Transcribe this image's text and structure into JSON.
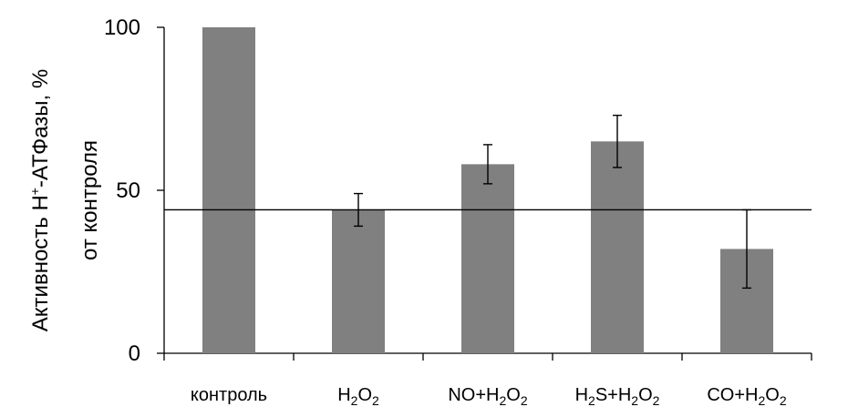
{
  "chart_data": {
    "type": "bar",
    "ylabel_line1": "Активность Н⁺-АТФазы, %",
    "ylabel_line2": "от контроля",
    "ylim": [
      0,
      100
    ],
    "yticks": [
      0,
      50,
      100
    ],
    "categories": [
      {
        "text": "контроль",
        "parts": [
          {
            "t": "контроль"
          }
        ]
      },
      {
        "text": "H₂O₂",
        "parts": [
          {
            "t": "H"
          },
          {
            "t": "2",
            "sub": true
          },
          {
            "t": "O"
          },
          {
            "t": "2",
            "sub": true
          }
        ]
      },
      {
        "text": "NO+H₂O₂",
        "parts": [
          {
            "t": "NO+H"
          },
          {
            "t": "2",
            "sub": true
          },
          {
            "t": "O"
          },
          {
            "t": "2",
            "sub": true
          }
        ]
      },
      {
        "text": "H₂S+H₂O₂",
        "parts": [
          {
            "t": "H"
          },
          {
            "t": "2",
            "sub": true
          },
          {
            "t": "S+H"
          },
          {
            "t": "2",
            "sub": true
          },
          {
            "t": "O"
          },
          {
            "t": "2",
            "sub": true
          }
        ]
      },
      {
        "text": "CO+H₂O₂",
        "parts": [
          {
            "t": "CO+H"
          },
          {
            "t": "2",
            "sub": true
          },
          {
            "t": "O"
          },
          {
            "t": "2",
            "sub": true
          }
        ]
      }
    ],
    "values": [
      100,
      44,
      58,
      65,
      32
    ],
    "errors": [
      null,
      5,
      6,
      8,
      12
    ],
    "reference_line": 44,
    "bar_color": "#808080",
    "grid": false
  }
}
